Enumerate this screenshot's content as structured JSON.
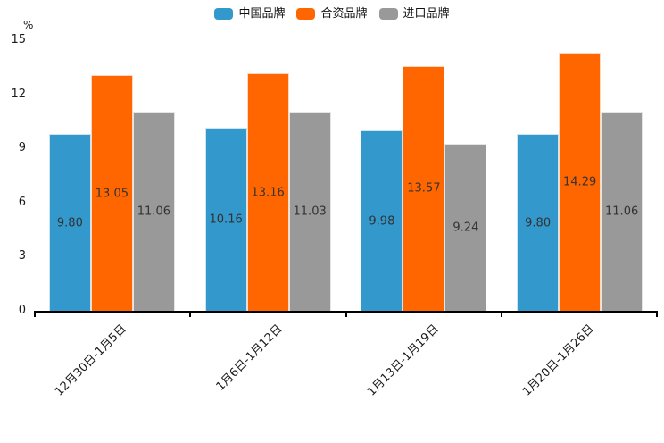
{
  "chart_data": {
    "type": "bar",
    "title": "",
    "xlabel": "",
    "ylabel": "%",
    "ylim": [
      0,
      15
    ],
    "yticks": [
      0,
      3,
      6,
      9,
      12,
      15
    ],
    "grid": false,
    "legend_position": "top-center",
    "categories": [
      "12月30日-1月5日",
      "1月6日-1月12日",
      "1月13日-1月19日",
      "1月20日-1月26日"
    ],
    "series": [
      {
        "key": "china-brand",
        "name": "中国品牌",
        "color": "#3398CC",
        "values": [
          9.8,
          10.16,
          9.98,
          9.8
        ],
        "labels": [
          "9.80",
          "10.16",
          "9.98",
          "9.80"
        ]
      },
      {
        "key": "joint-venture-brand",
        "name": "合资品牌",
        "color": "#FF6600",
        "values": [
          13.05,
          13.16,
          13.57,
          14.29
        ],
        "labels": [
          "13.05",
          "13.16",
          "13.57",
          "14.29"
        ]
      },
      {
        "key": "import-brand",
        "name": "进口品牌",
        "color": "#999999",
        "values": [
          11.06,
          11.03,
          9.24,
          11.06
        ],
        "labels": [
          "11.06",
          "11.03",
          "9.24",
          "11.06"
        ]
      }
    ],
    "colors": {
      "background": "#FFFFFF",
      "axis": "#000000",
      "bar_label_text": "#333333",
      "tick_text": "#1A1A1A"
    }
  }
}
